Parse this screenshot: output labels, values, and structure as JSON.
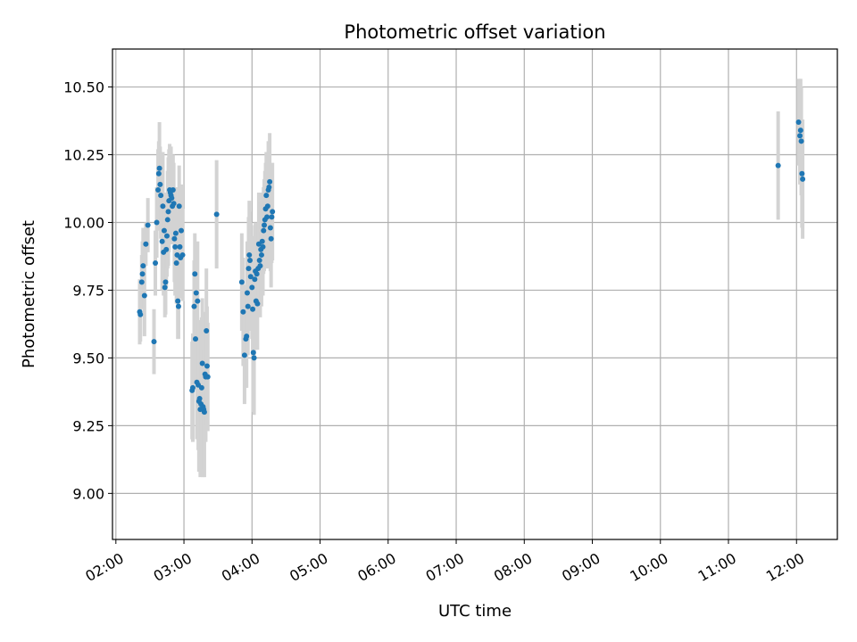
{
  "chart_data": {
    "type": "scatter",
    "title": "Photometric offset variation",
    "xlabel": "UTC time",
    "ylabel": "Photometric offset",
    "x_unit": "hour",
    "xlim": [
      1.95,
      12.6
    ],
    "ylim": [
      8.83,
      10.64
    ],
    "x_ticks": [
      {
        "value": 2,
        "label": "02:00"
      },
      {
        "value": 3,
        "label": "03:00"
      },
      {
        "value": 4,
        "label": "04:00"
      },
      {
        "value": 5,
        "label": "05:00"
      },
      {
        "value": 6,
        "label": "06:00"
      },
      {
        "value": 7,
        "label": "07:00"
      },
      {
        "value": 8,
        "label": "08:00"
      },
      {
        "value": 9,
        "label": "09:00"
      },
      {
        "value": 10,
        "label": "10:00"
      },
      {
        "value": 11,
        "label": "11:00"
      },
      {
        "value": 12,
        "label": "12:00"
      }
    ],
    "y_ticks": [
      {
        "value": 9.0,
        "label": "9.00"
      },
      {
        "value": 9.25,
        "label": "9.25"
      },
      {
        "value": 9.5,
        "label": "9.50"
      },
      {
        "value": 9.75,
        "label": "9.75"
      },
      {
        "value": 10.0,
        "label": "10.00"
      },
      {
        "value": 10.25,
        "label": "10.25"
      },
      {
        "value": 10.5,
        "label": "10.50"
      }
    ],
    "grid": true,
    "point_color": "#1f77b4",
    "errorbar_color": "#d3d3d3",
    "points": [
      [
        2.35,
        9.67,
        0.12
      ],
      [
        2.36,
        9.66,
        0.1
      ],
      [
        2.38,
        9.78,
        0.1
      ],
      [
        2.39,
        9.81,
        0.12
      ],
      [
        2.4,
        9.84,
        0.14
      ],
      [
        2.42,
        9.73,
        0.15
      ],
      [
        2.44,
        9.92,
        0.08
      ],
      [
        2.47,
        9.99,
        0.1
      ],
      [
        2.56,
        9.56,
        0.12
      ],
      [
        2.58,
        9.85,
        0.12
      ],
      [
        2.6,
        10.0,
        0.13
      ],
      [
        2.62,
        10.12,
        0.15
      ],
      [
        2.63,
        10.18,
        0.12
      ],
      [
        2.64,
        10.2,
        0.17
      ],
      [
        2.65,
        10.14,
        0.14
      ],
      [
        2.66,
        10.1,
        0.16
      ],
      [
        2.68,
        9.93,
        0.18
      ],
      [
        2.69,
        10.06,
        0.2
      ],
      [
        2.7,
        9.89,
        0.16
      ],
      [
        2.71,
        9.97,
        0.14
      ],
      [
        2.72,
        9.76,
        0.11
      ],
      [
        2.73,
        9.78,
        0.12
      ],
      [
        2.74,
        9.9,
        0.14
      ],
      [
        2.75,
        9.95,
        0.15
      ],
      [
        2.76,
        10.01,
        0.18
      ],
      [
        2.77,
        10.04,
        0.2
      ],
      [
        2.78,
        10.08,
        0.19
      ],
      [
        2.79,
        10.12,
        0.17
      ],
      [
        2.8,
        10.11,
        0.15
      ],
      [
        2.81,
        10.1,
        0.18
      ],
      [
        2.82,
        10.09,
        0.16
      ],
      [
        2.83,
        10.06,
        0.14
      ],
      [
        2.84,
        10.12,
        0.13
      ],
      [
        2.85,
        10.07,
        0.15
      ],
      [
        2.86,
        9.94,
        0.16
      ],
      [
        2.87,
        9.91,
        0.18
      ],
      [
        2.88,
        9.96,
        0.17
      ],
      [
        2.89,
        9.85,
        0.15
      ],
      [
        2.9,
        9.88,
        0.16
      ],
      [
        2.91,
        9.71,
        0.14
      ],
      [
        2.92,
        9.69,
        0.12
      ],
      [
        2.93,
        10.06,
        0.15
      ],
      [
        2.94,
        9.91,
        0.14
      ],
      [
        2.95,
        9.87,
        0.15
      ],
      [
        2.96,
        9.97,
        0.17
      ],
      [
        2.98,
        9.88,
        0.17
      ],
      [
        3.12,
        9.38,
        0.18
      ],
      [
        3.13,
        9.39,
        0.2
      ],
      [
        3.15,
        9.69,
        0.17
      ],
      [
        3.16,
        9.81,
        0.15
      ],
      [
        3.17,
        9.57,
        0.16
      ],
      [
        3.18,
        9.74,
        0.15
      ],
      [
        3.19,
        9.41,
        0.21
      ],
      [
        3.2,
        9.71,
        0.22
      ],
      [
        3.21,
        9.4,
        0.24
      ],
      [
        3.22,
        9.34,
        0.26
      ],
      [
        3.23,
        9.35,
        0.26
      ],
      [
        3.24,
        9.31,
        0.25
      ],
      [
        3.25,
        9.33,
        0.23
      ],
      [
        3.26,
        9.39,
        0.26
      ],
      [
        3.27,
        9.48,
        0.24
      ],
      [
        3.28,
        9.32,
        0.26
      ],
      [
        3.29,
        9.31,
        0.22
      ],
      [
        3.3,
        9.3,
        0.24
      ],
      [
        3.31,
        9.44,
        0.22
      ],
      [
        3.32,
        9.43,
        0.24
      ],
      [
        3.33,
        9.6,
        0.23
      ],
      [
        3.34,
        9.47,
        0.22
      ],
      [
        3.35,
        9.43,
        0.2
      ],
      [
        3.48,
        10.03,
        0.2
      ],
      [
        3.85,
        9.78,
        0.18
      ],
      [
        3.87,
        9.67,
        0.2
      ],
      [
        3.89,
        9.51,
        0.18
      ],
      [
        3.91,
        9.57,
        0.18
      ],
      [
        3.92,
        9.58,
        0.19
      ],
      [
        3.93,
        9.74,
        0.19
      ],
      [
        3.94,
        9.69,
        0.18
      ],
      [
        3.95,
        9.83,
        0.19
      ],
      [
        3.96,
        9.88,
        0.2
      ],
      [
        3.97,
        9.86,
        0.18
      ],
      [
        3.98,
        9.8,
        0.2
      ],
      [
        4.0,
        9.76,
        0.19
      ],
      [
        4.01,
        9.68,
        0.17
      ],
      [
        4.02,
        9.52,
        0.22
      ],
      [
        4.03,
        9.5,
        0.21
      ],
      [
        4.04,
        9.79,
        0.2
      ],
      [
        4.05,
        9.82,
        0.18
      ],
      [
        4.06,
        9.71,
        0.18
      ],
      [
        4.07,
        9.81,
        0.19
      ],
      [
        4.08,
        9.7,
        0.17
      ],
      [
        4.09,
        9.83,
        0.16
      ],
      [
        4.1,
        9.92,
        0.19
      ],
      [
        4.11,
        9.86,
        0.17
      ],
      [
        4.12,
        9.84,
        0.19
      ],
      [
        4.13,
        9.9,
        0.18
      ],
      [
        4.14,
        9.88,
        0.19
      ],
      [
        4.15,
        9.93,
        0.18
      ],
      [
        4.16,
        9.91,
        0.18
      ],
      [
        4.17,
        9.97,
        0.16
      ],
      [
        4.18,
        9.99,
        0.17
      ],
      [
        4.19,
        10.01,
        0.18
      ],
      [
        4.2,
        10.05,
        0.17
      ],
      [
        4.21,
        10.1,
        0.16
      ],
      [
        4.22,
        10.02,
        0.19
      ],
      [
        4.23,
        10.06,
        0.17
      ],
      [
        4.24,
        10.12,
        0.18
      ],
      [
        4.25,
        10.13,
        0.17
      ],
      [
        4.26,
        10.15,
        0.18
      ],
      [
        4.27,
        9.98,
        0.16
      ],
      [
        4.28,
        9.94,
        0.18
      ],
      [
        4.29,
        10.02,
        0.17
      ],
      [
        4.3,
        10.04,
        0.18
      ],
      [
        11.73,
        10.21,
        0.2
      ],
      [
        12.03,
        10.37,
        0.16
      ],
      [
        12.05,
        10.32,
        0.18
      ],
      [
        12.06,
        10.34,
        0.19
      ],
      [
        12.07,
        10.3,
        0.2
      ],
      [
        12.08,
        10.18,
        0.2
      ],
      [
        12.09,
        10.16,
        0.22
      ]
    ]
  }
}
